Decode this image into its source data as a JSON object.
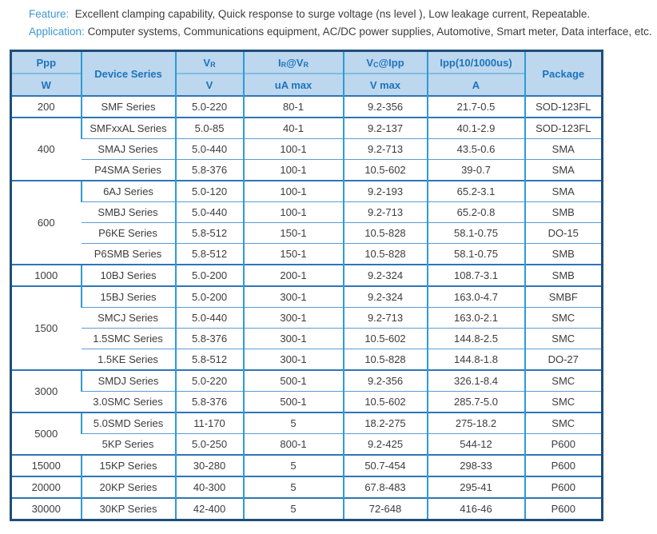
{
  "colors": {
    "header_bg": "#BDD7EE",
    "header_text": "#1B74BE",
    "label_blue": "#3E97D3",
    "body_text": "#3C3C3C",
    "grid_vertical": "#2E9BD6",
    "grid_row": "#5B9BD5",
    "grid_group": "#2E75B6",
    "header_line": "#7FBDE6",
    "outer_border": "#1F4E79"
  },
  "intro": {
    "feature_label": "Feature:",
    "feature_text": "Excellent clamping capability, Quick response to surge voltage (ns level ), Low leakage current,  Repeatable.",
    "application_label": "Application:",
    "application_text": "Computer systems,  Communications equipment, AC/DC power supplies, Automotive, Smart meter, Data interface, etc."
  },
  "table": {
    "header": {
      "ppp": "Ppp",
      "ppp_unit": "W",
      "device_series": "Device Series",
      "vr_base": "V",
      "vr_sub": "R",
      "vr_unit": "V",
      "ir_i": "I",
      "ir_sub1": "R",
      "ir_at_v": "@V",
      "ir_sub2": "R",
      "ir_unit": "uA  max",
      "vc_v": "V",
      "vc_sub": "C",
      "vc_at_ipp": "@Ipp",
      "vc_unit": "V  max",
      "ipp": "Ipp(10/1000us)",
      "ipp_unit": "A",
      "package": "Package"
    },
    "groups": [
      {
        "ppp": "200",
        "rows": [
          [
            "SMF Series",
            "5.0-220",
            "80-1",
            "9.2-356",
            "21.7-0.5",
            "SOD-123FL"
          ]
        ]
      },
      {
        "ppp": "400",
        "rows": [
          [
            "SMFxxAL Series",
            "5.0-85",
            "40-1",
            "9.2-137",
            "40.1-2.9",
            "SOD-123FL"
          ],
          [
            "SMAJ Series",
            "5.0-440",
            "100-1",
            "9.2-713",
            "43.5-0.6",
            "SMA"
          ],
          [
            "P4SMA Series",
            "5.8-376",
            "100-1",
            "10.5-602",
            "39-0.7",
            "SMA"
          ]
        ]
      },
      {
        "ppp": "600",
        "rows": [
          [
            "6AJ Series",
            "5.0-120",
            "100-1",
            "9.2-193",
            "65.2-3.1",
            "SMA"
          ],
          [
            "SMBJ Series",
            "5.0-440",
            "100-1",
            "9.2-713",
            "65.2-0.8",
            "SMB"
          ],
          [
            "P6KE Series",
            "5.8-512",
            "150-1",
            "10.5-828",
            "58.1-0.75",
            "DO-15"
          ],
          [
            "P6SMB Series",
            "5.8-512",
            "150-1",
            "10.5-828",
            "58.1-0.75",
            "SMB"
          ]
        ]
      },
      {
        "ppp": "1000",
        "rows": [
          [
            "10BJ Series",
            "5.0-200",
            "200-1",
            "9.2-324",
            "108.7-3.1",
            "SMB"
          ]
        ]
      },
      {
        "ppp": "1500",
        "rows": [
          [
            "15BJ Series",
            "5.0-200",
            "300-1",
            "9.2-324",
            "163.0-4.7",
            "SMBF"
          ],
          [
            "SMCJ Series",
            "5.0-440",
            "300-1",
            "9.2-713",
            "163.0-2.1",
            "SMC"
          ],
          [
            "1.5SMC Series",
            "5.8-376",
            "300-1",
            "10.5-602",
            "144.8-2.5",
            "SMC"
          ],
          [
            "1.5KE Series",
            "5.8-512",
            "300-1",
            "10.5-828",
            "144.8-1.8",
            "DO-27"
          ]
        ]
      },
      {
        "ppp": "3000",
        "rows": [
          [
            "SMDJ Series",
            "5.0-220",
            "500-1",
            "9.2-356",
            "326.1-8.4",
            "SMC"
          ],
          [
            "3.0SMC Series",
            "5.8-376",
            "500-1",
            "10.5-602",
            "285.7-5.0",
            "SMC"
          ]
        ]
      },
      {
        "ppp": "5000",
        "rows": [
          [
            "5.0SMD Series",
            "11-170",
            "5",
            "18.2-275",
            "275-18.2",
            "SMC"
          ],
          [
            "5KP Series",
            "5.0-250",
            "800-1",
            "9.2-425",
            "544-12",
            "P600"
          ]
        ]
      },
      {
        "ppp": "15000",
        "rows": [
          [
            "15KP Series",
            "30-280",
            "5",
            "50.7-454",
            "298-33",
            "P600"
          ]
        ]
      },
      {
        "ppp": "20000",
        "rows": [
          [
            "20KP Series",
            "40-300",
            "5",
            "67.8-483",
            "295-41",
            "P600"
          ]
        ]
      },
      {
        "ppp": "30000",
        "rows": [
          [
            "30KP Series",
            "42-400",
            "5",
            "72-648",
            "416-46",
            "P600"
          ]
        ]
      }
    ]
  }
}
